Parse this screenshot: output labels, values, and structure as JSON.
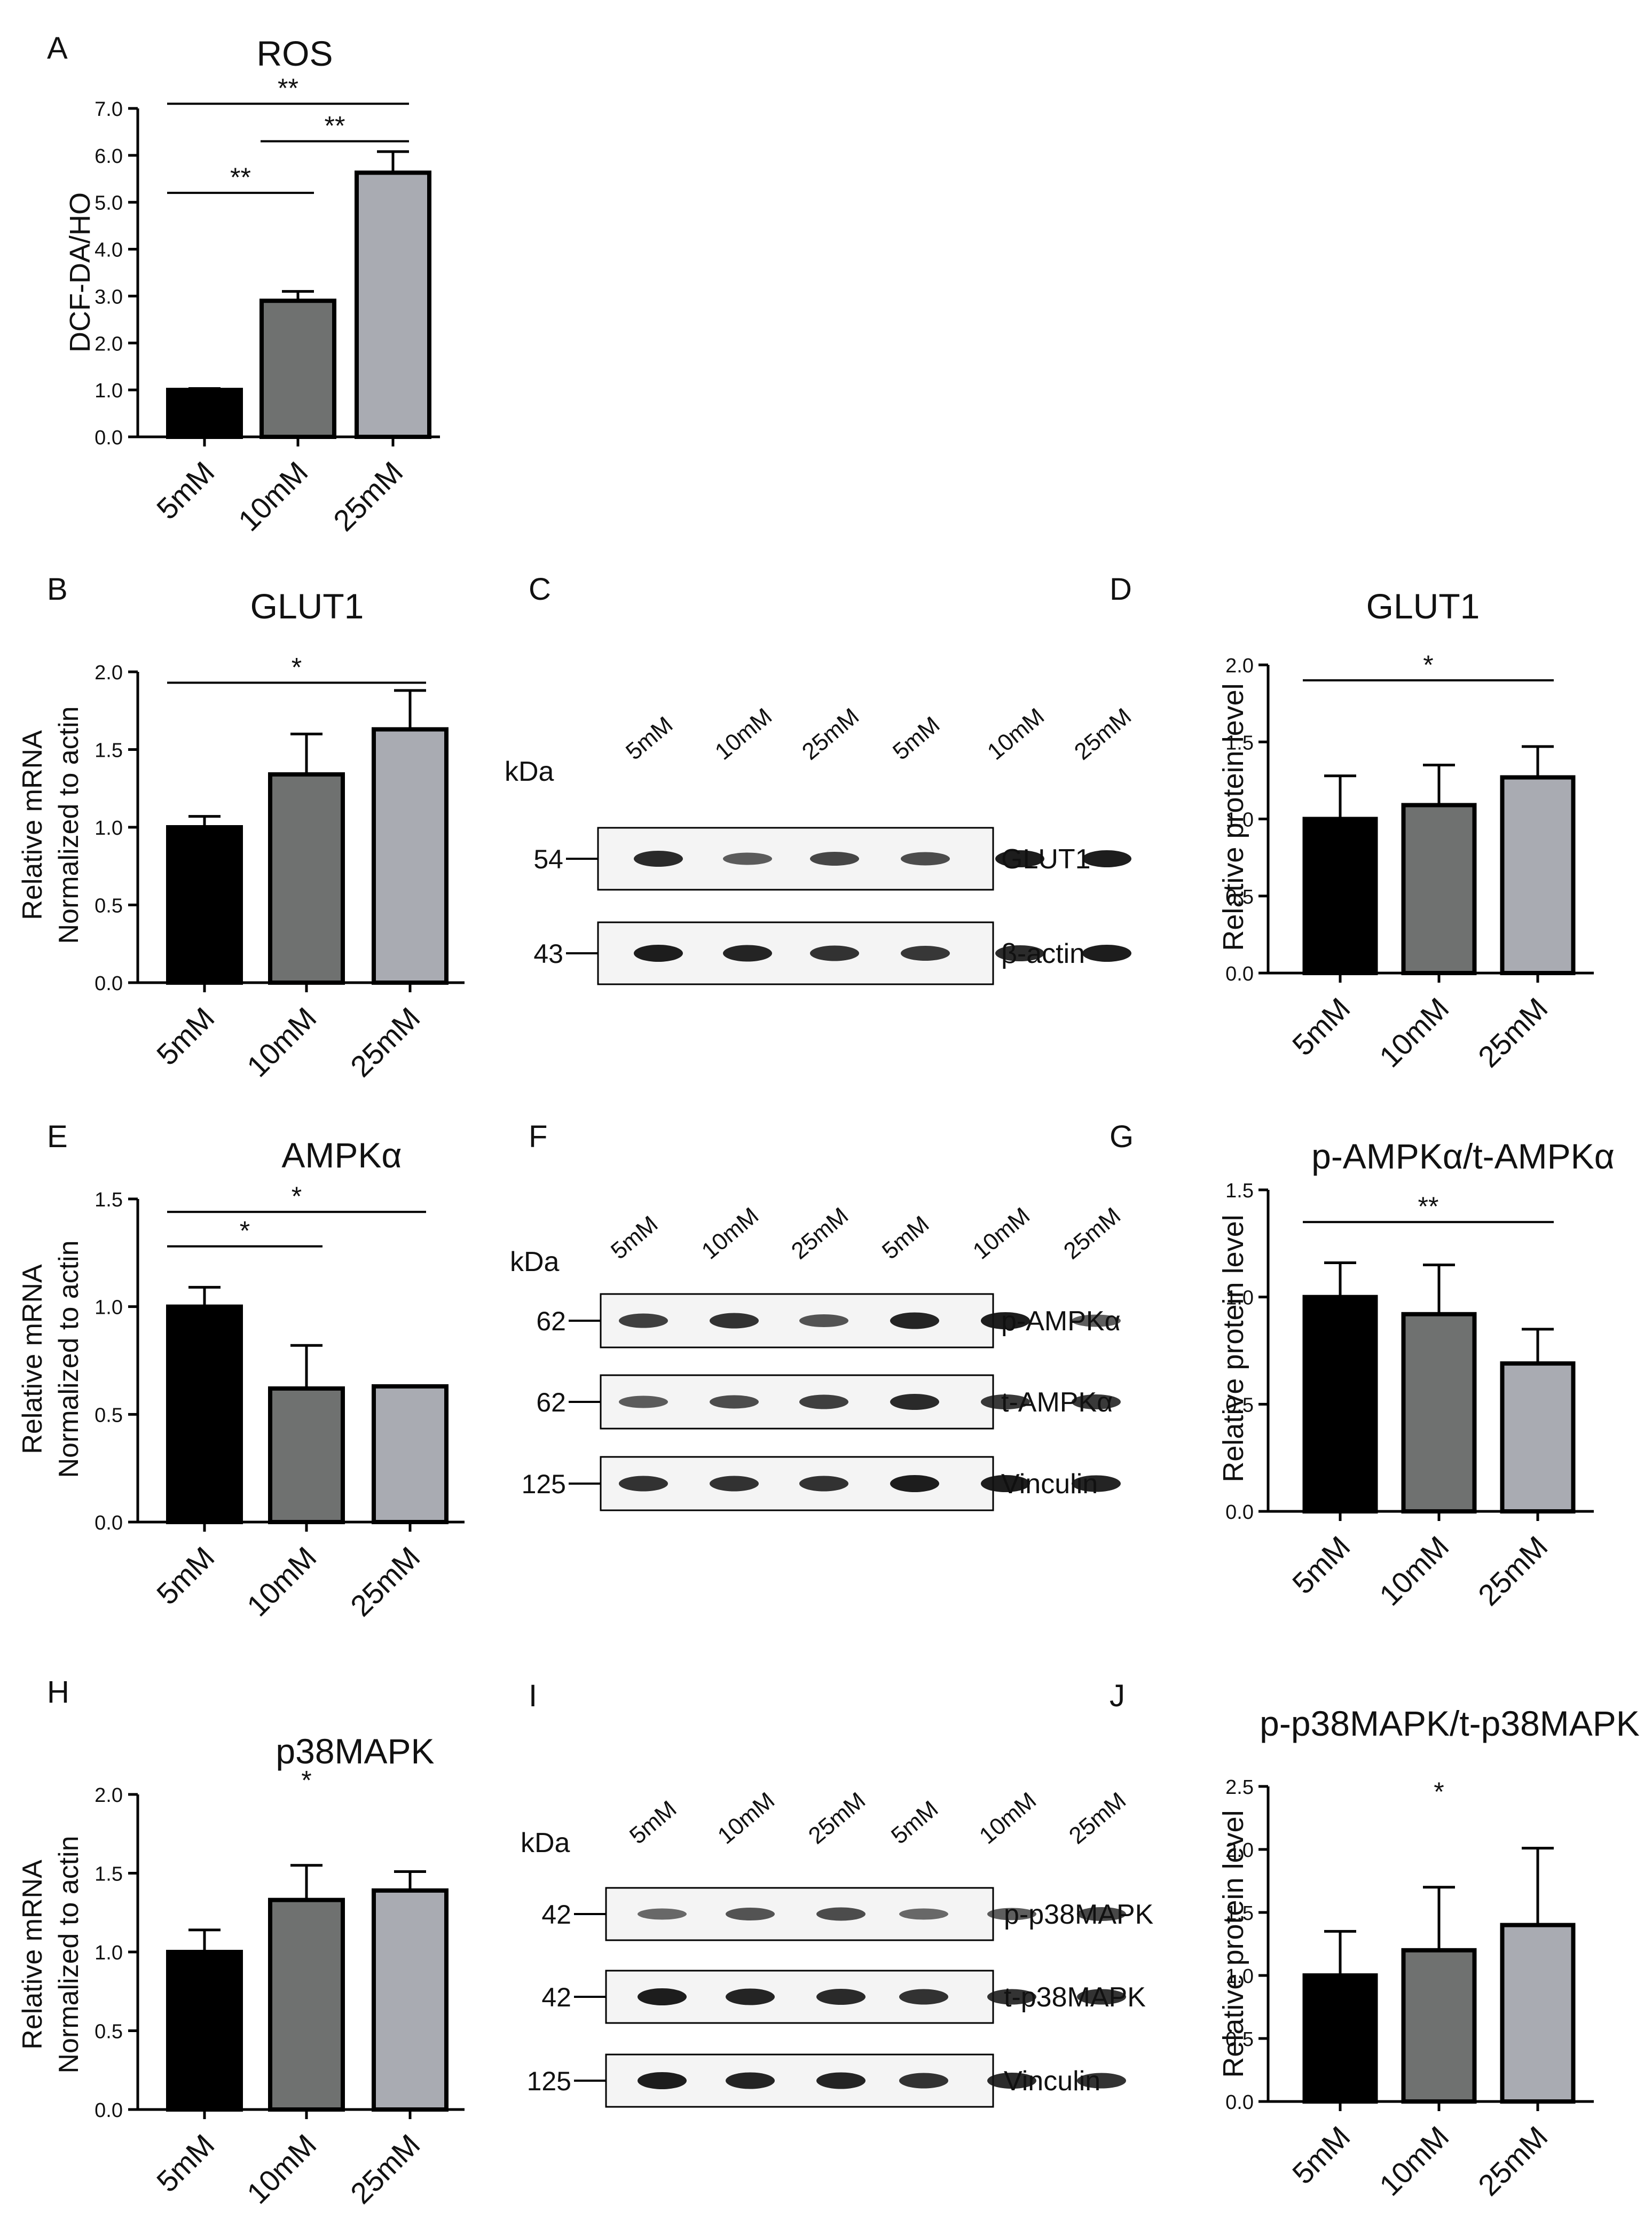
{
  "chart_data": [
    {
      "id": "A",
      "type": "bar",
      "panel_letter": "A",
      "title": "ROS",
      "ylabel": "DCF-DA/HO",
      "categories": [
        "5mM",
        "10mM",
        "25mM"
      ],
      "values": [
        1.0,
        2.9,
        5.63
      ],
      "errors": [
        0.03,
        0.2,
        0.45
      ],
      "ylim": [
        0,
        7
      ],
      "yticks": [
        "0.0",
        "1.0",
        "2.0",
        "3.0",
        "4.0",
        "5.0",
        "6.0",
        "7.0"
      ],
      "significance": [
        {
          "from": 0,
          "to": 1,
          "y": 5.2,
          "label": "**"
        },
        {
          "from": 1,
          "to": 2,
          "y": 6.3,
          "label": "**"
        },
        {
          "from": 0,
          "to": 2,
          "y": 7.1,
          "label": "**"
        }
      ]
    },
    {
      "id": "B",
      "type": "bar",
      "panel_letter": "B",
      "title": "GLUT1",
      "ylabel_lines": [
        "Relative mRNA",
        "Normalized to actin"
      ],
      "categories": [
        "5mM",
        "10mM",
        "25mM"
      ],
      "values": [
        1.0,
        1.34,
        1.63
      ],
      "errors": [
        0.07,
        0.26,
        0.25
      ],
      "ylim": [
        0,
        2
      ],
      "yticks": [
        "0.0",
        "0.5",
        "1.0",
        "1.5",
        "2.0"
      ],
      "significance": [
        {
          "from": 0,
          "to": 2,
          "y": 1.93,
          "label": "*"
        }
      ]
    },
    {
      "id": "D",
      "type": "bar",
      "panel_letter": "D",
      "title": "GLUT1",
      "ylabel": "Relative protein level",
      "categories": [
        "5mM",
        "10mM",
        "25mM"
      ],
      "values": [
        1.0,
        1.09,
        1.27
      ],
      "errors": [
        0.28,
        0.26,
        0.2
      ],
      "ylim": [
        0,
        2
      ],
      "yticks": [
        "0.0",
        "0.5",
        "1.0",
        "1.5",
        "2.0"
      ],
      "significance": [
        {
          "from": 0,
          "to": 2,
          "y": 1.9,
          "label": "*"
        }
      ]
    },
    {
      "id": "E",
      "type": "bar",
      "panel_letter": "E",
      "title": "AMPKα",
      "ylabel_lines": [
        "Relative mRNA",
        "Normalized to actin"
      ],
      "categories": [
        "5mM",
        "10mM",
        "25mM"
      ],
      "values": [
        1.0,
        0.62,
        0.63
      ],
      "errors": [
        0.09,
        0.2,
        0.0
      ],
      "ylim": [
        0,
        1.5
      ],
      "yticks": [
        "0.0",
        "0.5",
        "1.0",
        "1.5"
      ],
      "significance": [
        {
          "from": 0,
          "to": 1,
          "y": 1.28,
          "label": "*"
        },
        {
          "from": 0,
          "to": 2,
          "y": 1.44,
          "label": "*"
        }
      ]
    },
    {
      "id": "G",
      "type": "bar",
      "panel_letter": "G",
      "title": "p-AMPKα/t-AMPKα",
      "ylabel": "Relative protein level",
      "categories": [
        "5mM",
        "10mM",
        "25mM"
      ],
      "values": [
        1.0,
        0.92,
        0.69
      ],
      "errors": [
        0.16,
        0.23,
        0.16
      ],
      "ylim": [
        0,
        1.5
      ],
      "yticks": [
        "0.0",
        "0.5",
        "1.0",
        "1.5"
      ],
      "significance": [
        {
          "from": 0,
          "to": 2,
          "y": 1.35,
          "label": "**"
        }
      ]
    },
    {
      "id": "H",
      "type": "bar",
      "panel_letter": "H",
      "title": "p38MAPK",
      "ylabel_lines": [
        "Relative mRNA",
        "Normalized to actin"
      ],
      "categories": [
        "5mM",
        "10mM",
        "25mM"
      ],
      "values": [
        1.0,
        1.33,
        1.39
      ],
      "errors": [
        0.14,
        0.22,
        0.12
      ],
      "ylim": [
        0,
        2
      ],
      "yticks": [
        "0.0",
        "0.5",
        "1.0",
        "1.5",
        "2.0"
      ],
      "stars": [
        {
          "label": "*",
          "x_index": 1,
          "y": 2.1
        }
      ]
    },
    {
      "id": "J",
      "type": "bar",
      "panel_letter": "J",
      "title": "p-p38MAPK/t-p38MAPK",
      "ylabel": "Relative protein level",
      "categories": [
        "5mM",
        "10mM",
        "25mM"
      ],
      "values": [
        1.0,
        1.2,
        1.4
      ],
      "errors": [
        0.35,
        0.5,
        0.61
      ],
      "ylim": [
        0,
        2.5
      ],
      "yticks": [
        "0.0",
        "0.5",
        "1.0",
        "1.5",
        "2.0",
        "2.5"
      ],
      "stars": [
        {
          "label": "*",
          "x_index": 1,
          "y": 2.47
        }
      ]
    }
  ],
  "blots": [
    {
      "id": "C",
      "panel_letter": "C",
      "kda_label": "kDa",
      "lanes": [
        "5mM",
        "10mM",
        "25mM",
        "5mM",
        "10mM",
        "25mM"
      ],
      "rows": [
        {
          "kda": "54",
          "label": "GLUT1",
          "intensity": [
            0.9,
            0.55,
            0.7,
            0.65,
            1.0,
            1.0
          ]
        },
        {
          "kda": "43",
          "label": "β-actin",
          "intensity": [
            1.0,
            0.95,
            0.85,
            0.8,
            0.9,
            1.0
          ]
        }
      ]
    },
    {
      "id": "F",
      "panel_letter": "F",
      "kda_label": "kDa",
      "lanes": [
        "5mM",
        "10mM",
        "25mM",
        "5mM",
        "10mM",
        "25mM"
      ],
      "rows": [
        {
          "kda": "62",
          "label": "p-AMPKα",
          "intensity": [
            0.75,
            0.85,
            0.6,
            0.95,
            1.0,
            0.55
          ]
        },
        {
          "kda": "62",
          "label": "t-AMPKα",
          "intensity": [
            0.55,
            0.65,
            0.75,
            0.9,
            0.8,
            0.8
          ]
        },
        {
          "kda": "125",
          "label": "Vinculin",
          "intensity": [
            0.85,
            0.85,
            0.85,
            1.0,
            1.0,
            0.95
          ]
        }
      ]
    },
    {
      "id": "I",
      "panel_letter": "I",
      "kda_label": "kDa",
      "lanes": [
        "5mM",
        "10mM",
        "25mM",
        "5mM",
        "10mM",
        "25mM"
      ],
      "rows": [
        {
          "kda": "42",
          "label": "p-p38MAPK",
          "intensity": [
            0.45,
            0.6,
            0.65,
            0.45,
            0.55,
            0.7
          ]
        },
        {
          "kda": "42",
          "label": "t-p38MAPK",
          "intensity": [
            1.0,
            0.95,
            0.9,
            0.85,
            0.85,
            0.85
          ]
        },
        {
          "kda": "125",
          "label": "Vinculin",
          "intensity": [
            1.0,
            0.95,
            0.95,
            0.85,
            0.9,
            0.85
          ]
        }
      ]
    }
  ],
  "colors": {
    "bar_fills": [
      "#000000",
      "#6f7170",
      "#a9abb2"
    ],
    "stroke": "#000000",
    "blot_band": "#111111"
  }
}
